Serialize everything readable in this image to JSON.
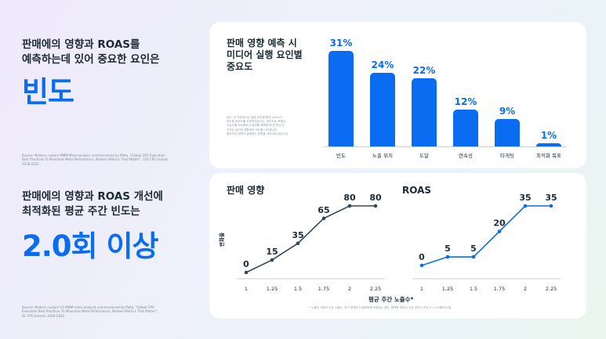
{
  "left_top": {
    "heading_line1": "판매에의 영향과 ROAS를",
    "heading_line2": "예측하는데 있어 중요한 요인은",
    "highlight": "빈도",
    "source_line1": "Source: Nielsen custom MMM Meta-analysis commissioned by Meta, \"Global CPG Execution",
    "source_line2": "Best Practices To Maximize Meta Performance, Nielsen Metrics That Matter\", 119 CPG brands,",
    "source_line3": "2018-2021"
  },
  "left_bottom": {
    "heading_line1": "판매에의 영향과 ROAS 개선에",
    "heading_line2": "최적화된 평균 주간 빈도는",
    "highlight": "2.0회 이상",
    "source_line1": "Source: Nielsen custom US MMM meta-analysis commissioned by Meta, \"Global CPG",
    "source_line2": "Execution Best Practices To Maximize Meta Performance, Nielsen Metrics That Matter\",",
    "source_line3": "41 CPG brands, 2018-2020"
  },
  "top_card": {
    "title_line1": "판매 영향 예측 시",
    "title_line2": "미디어 실행 요인별",
    "title_line3": "중요도",
    "note_lines": [
      "참고: 이 차트에서는 설명 요인별 합계 100%가",
      "되도록 중요도를 조정하였습니다. 중요도는 모델이",
      "가능도를 최소화하고 결과를 예측할 때 한 변수가",
      "가지는 상대적 영향력의 척도를 나타냅니다.",
      "중요도는 영향이 발생하는 방향을 나타내지 않습니다."
    ]
  },
  "bottom_card": {
    "sales_title": "판매 영향",
    "roas_title": "ROAS",
    "ylabel": "변화율",
    "xtitle": "평균 주간 노출수*",
    "footnote": "* 노출된 사람의 주당 노출수. 여기 명백하고 정확하게 측정되는 경우, 명백한 판한다 주요 빈도는 주당 2~2.25회이어 합."
  },
  "chart_data": [
    {
      "type": "bar",
      "title": "판매 영향 예측 시 미디어 실행 요인별 중요도",
      "categories": [
        "빈도",
        "노출 위치",
        "도달",
        "연속성",
        "타게팅",
        "최적화 목표"
      ],
      "values": [
        31,
        24,
        22,
        12,
        9,
        1
      ],
      "value_labels": [
        "31%",
        "24%",
        "22%",
        "12%",
        "9%",
        "1%"
      ],
      "unit": "%",
      "ylim": [
        0,
        31
      ]
    },
    {
      "type": "line",
      "title": "판매 영향",
      "x": [
        "1",
        "1.25",
        "1.5",
        "1.75",
        "2",
        "2.25"
      ],
      "values": [
        0,
        15,
        35,
        65,
        80,
        80
      ],
      "ylim": [
        0,
        80
      ],
      "ylabel": "변화율",
      "xlabel": "평균 주간 노출수*",
      "color": "#344854"
    },
    {
      "type": "line",
      "title": "ROAS",
      "x": [
        "1",
        "1.25",
        "1.5",
        "1.75",
        "2",
        "2.25"
      ],
      "values": [
        0,
        5,
        5,
        20,
        35,
        35
      ],
      "ylim": [
        0,
        35
      ],
      "xlabel": "평균 주간 노출수*",
      "color": "#0a6cf0"
    }
  ]
}
